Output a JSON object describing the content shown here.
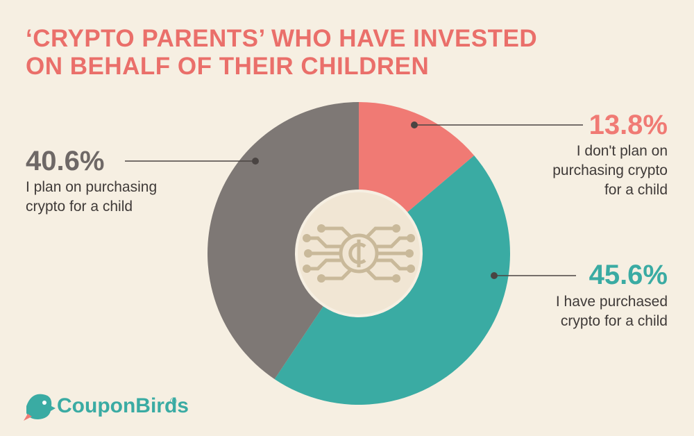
{
  "chart_data": {
    "type": "pie",
    "title": [
      "‘CRYPTO PARENTS’ WHO HAVE INVESTED",
      "ON BEHALF OF THEIR CHILDREN"
    ],
    "categories": [
      "I don't plan on purchasing crypto for a child",
      "I have purchased crypto for a child",
      "I plan on purchasing crypto for a child"
    ],
    "values": [
      13.8,
      45.6,
      40.6
    ],
    "value_labels": [
      "13.8%",
      "45.6%",
      "40.6%"
    ],
    "colors": [
      "#f07a74",
      "#3aaba3",
      "#7e7875"
    ]
  },
  "brand": "CouponBirds",
  "brand_mark": "®"
}
